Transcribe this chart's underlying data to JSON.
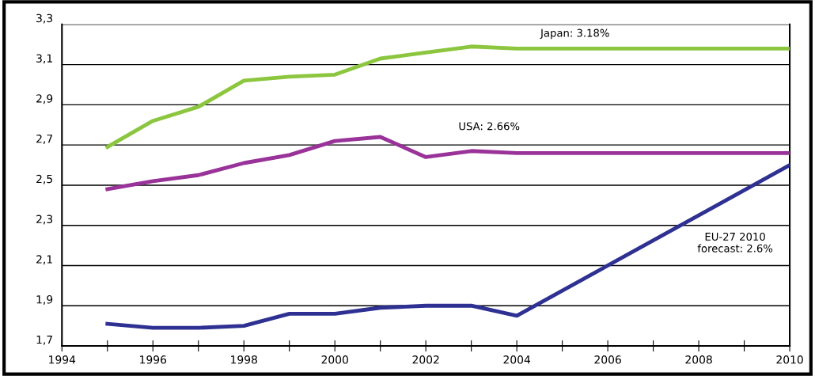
{
  "chart_data": {
    "type": "line",
    "x": [
      1995,
      1996,
      1997,
      1998,
      1999,
      2000,
      2001,
      2002,
      2003,
      2004,
      2005,
      2006,
      2007,
      2008,
      2009,
      2010
    ],
    "series": [
      {
        "color": "#8cc63f",
        "values": [
          2.69,
          2.82,
          2.89,
          3.02,
          3.04,
          3.05,
          3.13,
          3.16,
          3.19,
          3.18,
          3.18,
          3.18,
          3.18,
          3.18,
          3.18,
          3.18
        ]
      },
      {
        "color": "#993399",
        "values": [
          2.48,
          2.52,
          2.55,
          2.61,
          2.65,
          2.72,
          2.74,
          2.64,
          2.67,
          2.66,
          2.66,
          2.66,
          2.66,
          2.66,
          2.66,
          2.66
        ]
      },
      {
        "color": "#2e3192",
        "x": [
          1995,
          1996,
          1997,
          1998,
          1999,
          2000,
          2001,
          2002,
          2003,
          2004,
          2010
        ],
        "values": [
          1.81,
          1.79,
          1.79,
          1.8,
          1.86,
          1.86,
          1.89,
          1.9,
          1.9,
          1.85,
          2.6
        ]
      }
    ],
    "xlim": [
      1994,
      2010
    ],
    "xticks": [
      {
        "value": 1994,
        "label": "1994"
      },
      {
        "value": 1995,
        "label": null
      },
      {
        "value": 1996,
        "label": "1996"
      },
      {
        "value": 1997,
        "label": null
      },
      {
        "value": 1998,
        "label": "1998"
      },
      {
        "value": 1999,
        "label": null
      },
      {
        "value": 2000,
        "label": "2000"
      },
      {
        "value": 2001,
        "label": null
      },
      {
        "value": 2002,
        "label": "2002"
      },
      {
        "value": 2003,
        "label": null
      },
      {
        "value": 2004,
        "label": "2004"
      },
      {
        "value": 2005,
        "label": null
      },
      {
        "value": 2006,
        "label": "2006"
      },
      {
        "value": 2007,
        "label": null
      },
      {
        "value": 2008,
        "label": "2008"
      },
      {
        "value": 2009,
        "label": null
      },
      {
        "value": 2010,
        "label": "2010"
      }
    ],
    "ylim": [
      1.7,
      3.3
    ],
    "yticks": [
      {
        "value": 1.7,
        "label": "1,7"
      },
      {
        "value": 1.9,
        "label": "1,9"
      },
      {
        "value": 2.1,
        "label": "2,1"
      },
      {
        "value": 2.3,
        "label": "2,3"
      },
      {
        "value": 2.5,
        "label": "2,5"
      },
      {
        "value": 2.7,
        "label": "2,7"
      },
      {
        "value": 2.9,
        "label": "2,9"
      },
      {
        "value": 3.1,
        "label": "3,1"
      },
      {
        "value": 3.3,
        "label": "3,3"
      }
    ],
    "annotations": [
      "Japan: 3.18%",
      "USA: 2.66%",
      "EU-27 2010\nforecast: 2.6%"
    ],
    "grid": "y",
    "marker": "none",
    "line_style": "solid"
  }
}
